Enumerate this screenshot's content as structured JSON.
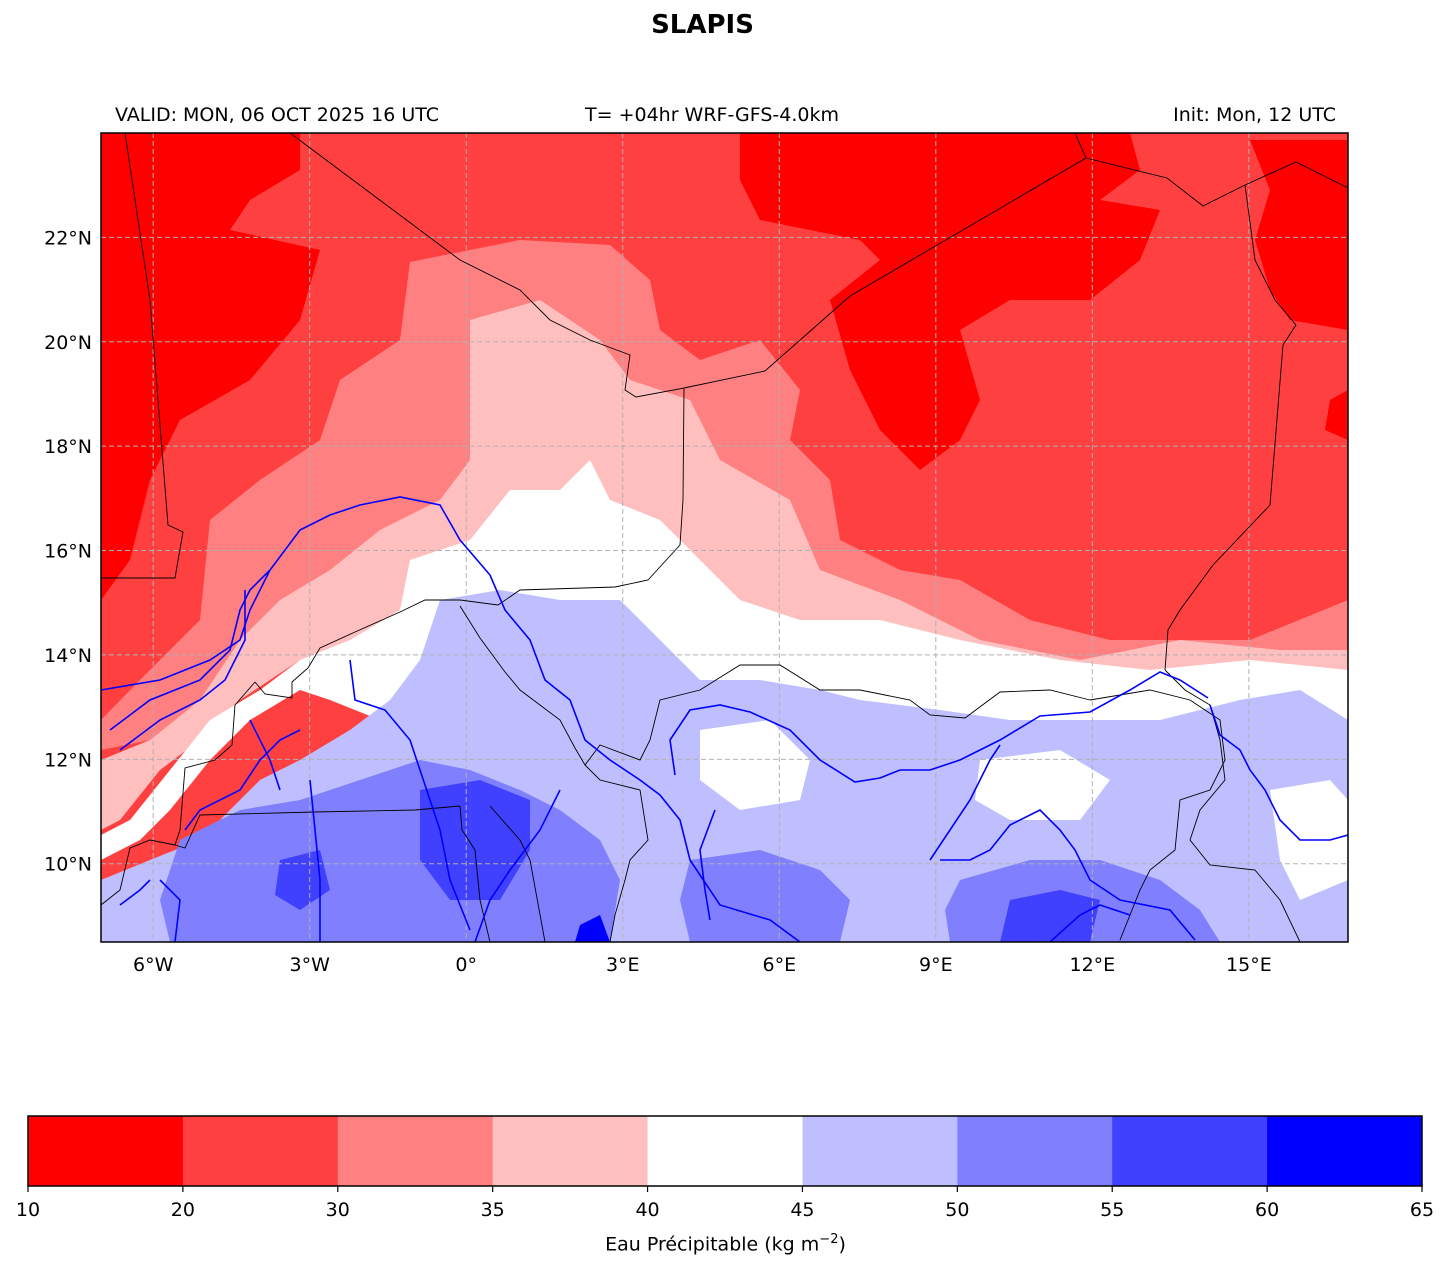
{
  "title": "SLAPIS",
  "subtitle_left": "VALID: MON, 06 OCT 2025 16 UTC",
  "subtitle_center": "T= +04hr WRF-GFS-4.0km",
  "subtitle_right": "Init: Mon, 12 UTC",
  "map": {
    "lon_range": [
      -7.0,
      16.9
    ],
    "lat_range": [
      8.5,
      24.0
    ],
    "gridlines": true,
    "lon_ticks": [
      -6,
      -3,
      0,
      3,
      6,
      9,
      12,
      15
    ],
    "lon_tick_labels": [
      "6°W",
      "3°W",
      "0°",
      "3°E",
      "6°E",
      "9°E",
      "12°E",
      "15°E"
    ],
    "lat_ticks": [
      10,
      12,
      14,
      16,
      18,
      20,
      22
    ],
    "lat_tick_labels": [
      "10°N",
      "12°N",
      "14°N",
      "16°N",
      "18°N",
      "20°N",
      "22°N"
    ],
    "border_color": "#000000",
    "river_color": "#0000ff"
  },
  "colorbar": {
    "bounds": [
      10,
      20,
      30,
      35,
      40,
      45,
      50,
      55,
      60,
      65
    ],
    "bound_labels": [
      "10",
      "20",
      "30",
      "35",
      "40",
      "45",
      "50",
      "55",
      "60",
      "65"
    ],
    "colors": [
      "#ff0000",
      "#ff4040",
      "#ff8080",
      "#ffbfbf",
      "#ffffff",
      "#bfbfff",
      "#8080ff",
      "#4040ff",
      "#0000ff"
    ],
    "label_text": "Eau Précipitable (kg m",
    "label_unit_sup": "−2",
    "label_close": ")"
  }
}
